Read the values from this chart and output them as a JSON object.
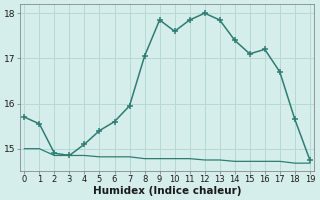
{
  "xlabel": "Humidex (Indice chaleur)",
  "x": [
    0,
    1,
    2,
    3,
    4,
    5,
    6,
    7,
    8,
    9,
    10,
    11,
    12,
    13,
    14,
    15,
    16,
    17,
    18,
    19
  ],
  "y_main": [
    15.7,
    15.55,
    14.9,
    14.85,
    15.1,
    15.4,
    15.6,
    15.95,
    17.05,
    17.85,
    17.6,
    17.85,
    18.0,
    17.85,
    17.4,
    17.1,
    17.2,
    16.7,
    15.65,
    14.75
  ],
  "y_flat": [
    15.0,
    15.0,
    14.85,
    14.85,
    14.85,
    14.82,
    14.82,
    14.82,
    14.78,
    14.78,
    14.78,
    14.78,
    14.75,
    14.75,
    14.72,
    14.72,
    14.72,
    14.72,
    14.68,
    14.68
  ],
  "line_color": "#2e7d72",
  "bg_color": "#d6eeeb",
  "grid_color": "#b8d8d4",
  "ylim": [
    14.5,
    18.2
  ],
  "yticks": [
    15,
    16,
    17,
    18
  ],
  "xlim": [
    -0.3,
    19.3
  ],
  "xtick_fontsize": 6.0,
  "ytick_fontsize": 6.5,
  "xlabel_fontsize": 7.5
}
